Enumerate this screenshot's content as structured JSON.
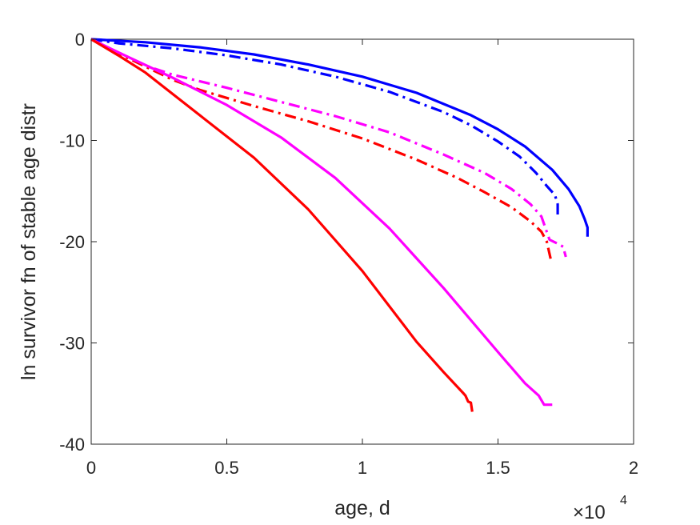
{
  "chart_data": {
    "type": "line",
    "title": "",
    "xlabel": "age, d",
    "ylabel": "ln survivor fn of stable age distr",
    "xlim": [
      0,
      20000
    ],
    "ylim": [
      -40,
      0
    ],
    "x_multiplier": {
      "base": "×10",
      "exponent": "4"
    },
    "xticks": [
      0,
      5000,
      10000,
      15000,
      20000
    ],
    "xtick_labels": [
      "0",
      "0.5",
      "1",
      "1.5",
      "2"
    ],
    "yticks": [
      0,
      -10,
      -20,
      -30,
      -40
    ],
    "ytick_labels": [
      "0",
      "-10",
      "-20",
      "-30",
      "-40"
    ],
    "grid": false,
    "legend": "none",
    "series": [
      {
        "color": "#0000ff",
        "style": "solid",
        "x": [
          0,
          2000,
          4000,
          6000,
          8000,
          10000,
          12000,
          14000,
          15000,
          16000,
          17000,
          17600,
          18000,
          18200,
          18300,
          18300
        ],
        "y": [
          0,
          -0.3,
          -0.8,
          -1.5,
          -2.5,
          -3.7,
          -5.3,
          -7.5,
          -8.9,
          -10.6,
          -12.9,
          -14.8,
          -16.5,
          -17.8,
          -18.6,
          -19.5
        ]
      },
      {
        "color": "#0000ff",
        "style": "dashdot",
        "x": [
          0,
          1000,
          3000,
          5000,
          7000,
          9000,
          11000,
          13000,
          14000,
          15000,
          15800,
          16400,
          16800,
          17100,
          17200,
          17200
        ],
        "y": [
          0,
          -0.4,
          -0.9,
          -1.6,
          -2.5,
          -3.7,
          -5.2,
          -7.2,
          -8.5,
          -10.1,
          -11.6,
          -13.2,
          -14.5,
          -15.4,
          -16.3,
          -17.5
        ]
      },
      {
        "color": "#ff00ff",
        "style": "dashdot",
        "x": [
          0,
          500,
          1000,
          2000,
          3000,
          5000,
          7000,
          9000,
          11000,
          13000,
          14500,
          15500,
          16200,
          16600,
          16900,
          17200,
          17400,
          17500
        ],
        "y": [
          0,
          -0.7,
          -1.3,
          -2.6,
          -3.5,
          -4.8,
          -6.2,
          -7.6,
          -9.2,
          -11.4,
          -13.2,
          -14.8,
          -16.3,
          -17.5,
          -19.8,
          -20.2,
          -20.5,
          -21.5
        ]
      },
      {
        "color": "#ff0000",
        "style": "dashdot",
        "x": [
          0,
          500,
          1000,
          2000,
          3000,
          4000,
          6000,
          8000,
          10000,
          12000,
          13500,
          14500,
          15500,
          16200,
          16600,
          16800,
          16950
        ],
        "y": [
          0,
          -0.7,
          -1.4,
          -2.7,
          -4.0,
          -5.0,
          -6.6,
          -8.1,
          -9.8,
          -11.9,
          -13.7,
          -15.1,
          -16.6,
          -18.0,
          -19.0,
          -20.0,
          -21.8
        ]
      },
      {
        "color": "#ff00ff",
        "style": "solid",
        "x": [
          0,
          1000,
          3000,
          5000,
          7000,
          9000,
          11000,
          13000,
          15000,
          16000,
          16500,
          16700,
          17000
        ],
        "y": [
          0,
          -1.3,
          -3.8,
          -6.5,
          -9.7,
          -13.7,
          -18.7,
          -24.6,
          -30.9,
          -34.0,
          -35.2,
          -36.1,
          -36.1
        ]
      },
      {
        "color": "#ff0000",
        "style": "solid",
        "x": [
          0,
          1000,
          2000,
          4000,
          6000,
          8000,
          10000,
          12000,
          13000,
          13700,
          13800,
          13900,
          14000,
          14050
        ],
        "y": [
          0,
          -1.6,
          -3.3,
          -7.5,
          -11.7,
          -16.8,
          -22.9,
          -29.9,
          -32.9,
          -34.9,
          -35.2,
          -35.8,
          -35.9,
          -36.8
        ]
      }
    ]
  }
}
